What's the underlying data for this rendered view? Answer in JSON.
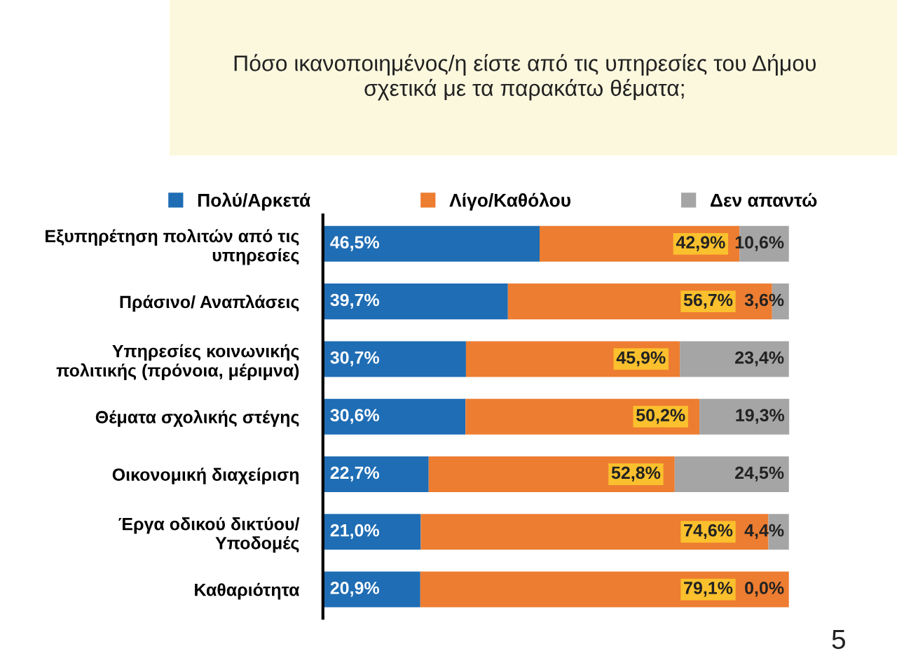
{
  "chart_data": {
    "type": "bar",
    "orientation": "horizontal",
    "stacked": true,
    "title": "Πόσο ικανοποιημένος/η είστε από τις υπηρεσίες του Δήμου\nσχετικά με τα παρακάτω θέματα;",
    "categories": [
      "Εξυπηρέτηση πολιτών από τις\nυπηρεσίες",
      "Πράσινο/ Αναπλάσεις",
      "Υπηρεσίες κοινωνικής\nπολιτικής (πρόνοια, μέριμνα)",
      "Θέματα σχολικής στέγης",
      "Οικονομική διαχείριση",
      "Έργα οδικού δικτύου/\nΥποδομές",
      "Καθαριότητα"
    ],
    "series": [
      {
        "name": "Πολύ/Αρκετά",
        "color": "#1f6db4",
        "values": [
          46.5,
          39.7,
          30.7,
          30.6,
          22.7,
          21.0,
          20.9
        ],
        "value_labels": [
          "46,5%",
          "39,7%",
          "30,7%",
          "30,6%",
          "22,7%",
          "21,0%",
          "20,9%"
        ]
      },
      {
        "name": "Λίγο/Καθόλου",
        "color": "#ed7d31",
        "values": [
          42.9,
          56.7,
          45.9,
          50.2,
          52.8,
          74.6,
          79.1
        ],
        "value_labels": [
          "42,9%",
          "56,7%",
          "45,9%",
          "50,2%",
          "52,8%",
          "74,6%",
          "79,1%"
        ]
      },
      {
        "name": "Δεν απαντώ",
        "color": "#a5a5a5",
        "values": [
          10.6,
          3.6,
          23.4,
          19.3,
          24.5,
          4.4,
          0.0
        ],
        "value_labels": [
          "10,6%",
          "3,6%",
          "23,4%",
          "19,3%",
          "24,5%",
          "4,4%",
          "0,0%"
        ]
      }
    ],
    "legend": "top",
    "grid": false,
    "annotations": [
      "5"
    ]
  }
}
